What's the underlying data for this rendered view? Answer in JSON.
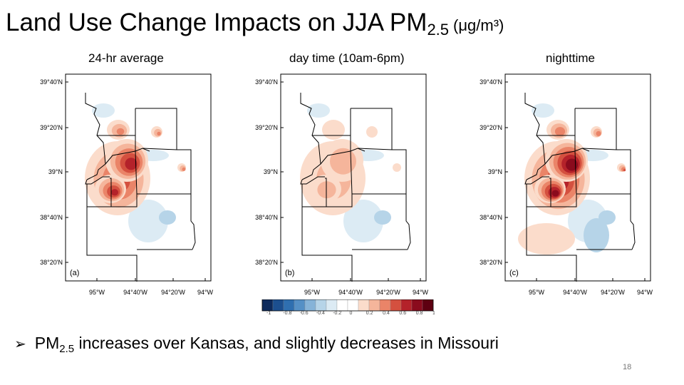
{
  "slide": {
    "title_prefix": "Land Use Change Impacts on JJA PM",
    "title_sub": "2.5",
    "title_unit": "(μg/m³)",
    "page_number": "18"
  },
  "panels": [
    {
      "heading": "24-hr average",
      "label": "(a)"
    },
    {
      "heading": "day time (10am-6pm)",
      "label": "(b)"
    },
    {
      "heading": "nighttime",
      "label": "(c)"
    }
  ],
  "axes": {
    "lat_ticks": [
      "39°40'N",
      "39°20'N",
      "39°N",
      "38°40'N",
      "38°20'N"
    ],
    "lon_ticks": [
      "95°W",
      "94°40'W",
      "94°20'W",
      "94°W"
    ]
  },
  "colorbar": {
    "labels": [
      "-1",
      "-0.8",
      "-0.6",
      "-0.4",
      "-0.2",
      "0",
      "0.2",
      "0.4",
      "0.6",
      "0.8",
      "1"
    ],
    "colors": [
      "#0d2a5c",
      "#1c4f8f",
      "#2f6fb0",
      "#5590c6",
      "#86b3d8",
      "#b6d4e8",
      "#dcebf4",
      "#ffffff",
      "#ffffff",
      "#fbdccb",
      "#f5b59b",
      "#ea8468",
      "#d4503f",
      "#b4222a",
      "#8a0b1d",
      "#5e0011"
    ]
  },
  "bullet": {
    "prefix": "PM",
    "sub": "2.5",
    "text": " increases over Kansas, and slightly decreases in Missouri"
  }
}
